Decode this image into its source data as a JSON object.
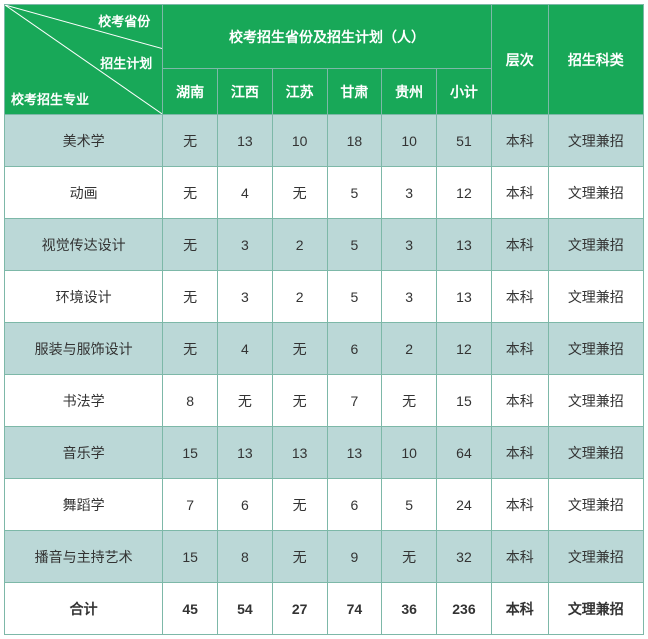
{
  "header": {
    "corner_top": "校考省份",
    "corner_mid": "招生计划",
    "corner_bottom": "校考招生专业",
    "group_title": "校考招生省份及招生计划（人）",
    "provinces": [
      "湖南",
      "江西",
      "江苏",
      "甘肃",
      "贵州"
    ],
    "subtotal": "小计",
    "level": "层次",
    "category": "招生科类"
  },
  "colors": {
    "header_bg": "#18a858",
    "header_fg": "#ffffff",
    "border": "#7db8a8",
    "row_even_bg": "#bbd8d7",
    "row_odd_bg": "#ffffff"
  },
  "rows": [
    {
      "major": "美术学",
      "vals": [
        "无",
        "13",
        "10",
        "18",
        "10"
      ],
      "sub": "51",
      "level": "本科",
      "cat": "文理兼招"
    },
    {
      "major": "动画",
      "vals": [
        "无",
        "4",
        "无",
        "5",
        "3"
      ],
      "sub": "12",
      "level": "本科",
      "cat": "文理兼招"
    },
    {
      "major": "视觉传达设计",
      "vals": [
        "无",
        "3",
        "2",
        "5",
        "3"
      ],
      "sub": "13",
      "level": "本科",
      "cat": "文理兼招"
    },
    {
      "major": "环境设计",
      "vals": [
        "无",
        "3",
        "2",
        "5",
        "3"
      ],
      "sub": "13",
      "level": "本科",
      "cat": "文理兼招"
    },
    {
      "major": "服装与服饰设计",
      "vals": [
        "无",
        "4",
        "无",
        "6",
        "2"
      ],
      "sub": "12",
      "level": "本科",
      "cat": "文理兼招"
    },
    {
      "major": "书法学",
      "vals": [
        "8",
        "无",
        "无",
        "7",
        "无"
      ],
      "sub": "15",
      "level": "本科",
      "cat": "文理兼招"
    },
    {
      "major": "音乐学",
      "vals": [
        "15",
        "13",
        "13",
        "13",
        "10"
      ],
      "sub": "64",
      "level": "本科",
      "cat": "文理兼招"
    },
    {
      "major": "舞蹈学",
      "vals": [
        "7",
        "6",
        "无",
        "6",
        "5"
      ],
      "sub": "24",
      "level": "本科",
      "cat": "文理兼招"
    },
    {
      "major": "播音与主持艺术",
      "vals": [
        "15",
        "8",
        "无",
        "9",
        "无"
      ],
      "sub": "32",
      "level": "本科",
      "cat": "文理兼招"
    }
  ],
  "total": {
    "label": "合计",
    "vals": [
      "45",
      "54",
      "27",
      "74",
      "36"
    ],
    "sub": "236",
    "level": "本科",
    "cat": "文理兼招"
  }
}
